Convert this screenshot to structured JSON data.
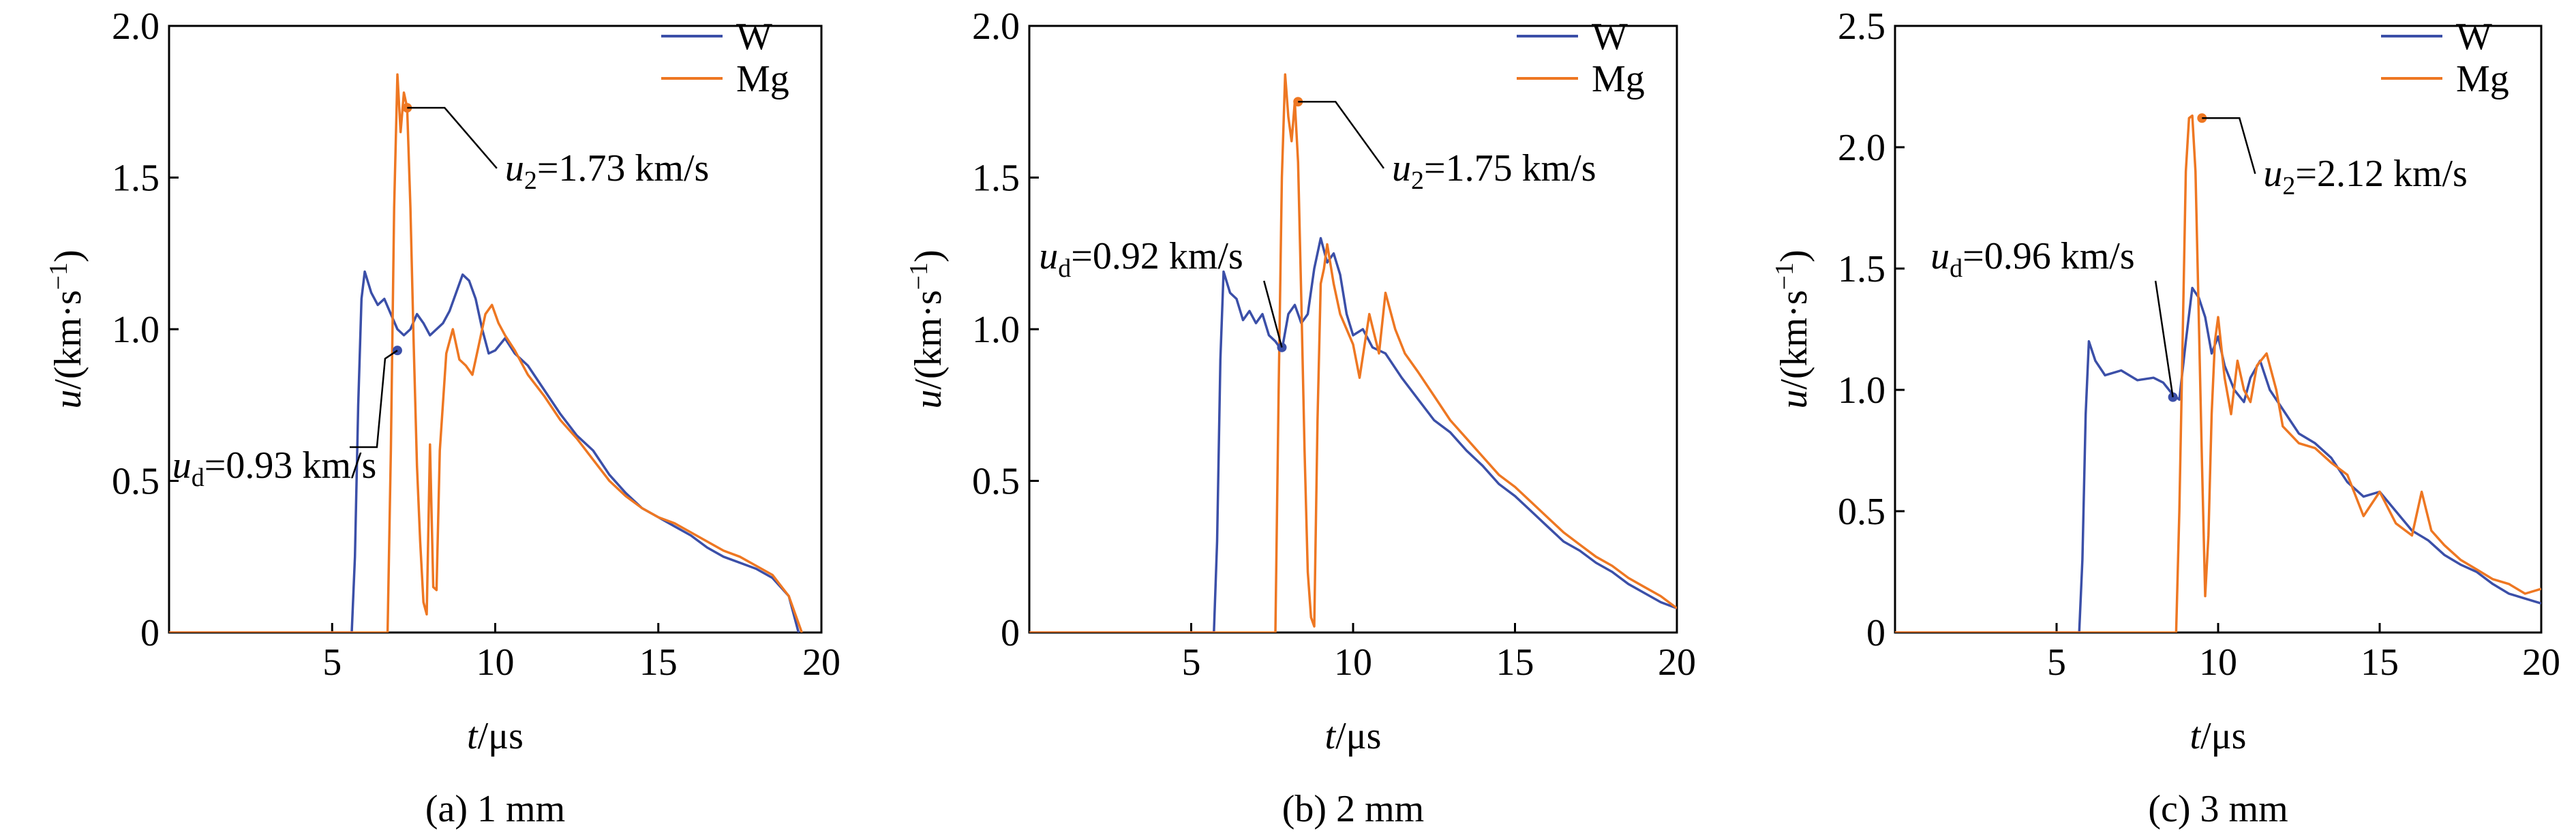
{
  "colors": {
    "W": "#3B4FA8",
    "Mg": "#EE7722",
    "axis": "#000000"
  },
  "chart_data": [
    {
      "type": "line",
      "caption": "(a) 1 mm",
      "xlabel_var": "t",
      "xlabel_unit": "/μs",
      "ylabel_var": "u",
      "ylabel_unit": "/(km·s",
      "ylabel_exp": "−1",
      "ylabel_close": ")",
      "xlim": [
        0,
        20
      ],
      "ylim": [
        0,
        2.0
      ],
      "xticks": [
        5,
        10,
        15,
        20
      ],
      "xtick_labels": [
        "5",
        "10",
        "15",
        "20"
      ],
      "yticks": [
        0,
        0.5,
        1.0,
        1.5,
        2.0
      ],
      "ytick_labels": [
        "0",
        "0.5",
        "1.0",
        "1.5",
        "2.0"
      ],
      "legend_position": "top-right",
      "series": [
        {
          "name": "W",
          "color_key": "W",
          "x": [
            5.6,
            5.7,
            5.8,
            5.9,
            6.0,
            6.2,
            6.4,
            6.6,
            6.8,
            7.0,
            7.2,
            7.4,
            7.6,
            7.8,
            8.0,
            8.2,
            8.4,
            8.6,
            8.8,
            9.0,
            9.2,
            9.4,
            9.6,
            9.8,
            10.0,
            10.3,
            10.6,
            11.0,
            11.5,
            12.0,
            12.5,
            13.0,
            13.5,
            14.0,
            14.5,
            15.0,
            15.5,
            16.0,
            16.5,
            17.0,
            17.5,
            18.0,
            18.5,
            19.0,
            19.3
          ],
          "y": [
            0,
            0.25,
            0.75,
            1.1,
            1.19,
            1.12,
            1.08,
            1.1,
            1.05,
            1.0,
            0.98,
            1.0,
            1.05,
            1.02,
            0.98,
            1.0,
            1.02,
            1.06,
            1.12,
            1.18,
            1.16,
            1.1,
            1.0,
            0.92,
            0.93,
            0.97,
            0.92,
            0.88,
            0.8,
            0.72,
            0.65,
            0.6,
            0.52,
            0.46,
            0.41,
            0.38,
            0.35,
            0.32,
            0.28,
            0.25,
            0.23,
            0.21,
            0.18,
            0.12,
            0
          ]
        },
        {
          "name": "Mg",
          "color_key": "Mg",
          "x": [
            6.7,
            6.8,
            6.9,
            7.0,
            7.1,
            7.2,
            7.3,
            7.4,
            7.5,
            7.6,
            7.7,
            7.8,
            7.9,
            8.0,
            8.1,
            8.2,
            8.3,
            8.5,
            8.7,
            8.9,
            9.1,
            9.3,
            9.5,
            9.7,
            9.9,
            10.1,
            10.3,
            10.6,
            11.0,
            11.5,
            12.0,
            12.5,
            13.0,
            13.5,
            14.0,
            14.5,
            15.0,
            15.5,
            16.0,
            16.5,
            17.0,
            17.5,
            18.0,
            18.5,
            19.0,
            19.4
          ],
          "y": [
            0,
            0.6,
            1.4,
            1.84,
            1.65,
            1.78,
            1.73,
            1.4,
            0.95,
            0.55,
            0.3,
            0.1,
            0.06,
            0.62,
            0.15,
            0.14,
            0.6,
            0.92,
            1.0,
            0.9,
            0.88,
            0.85,
            0.95,
            1.05,
            1.08,
            1.02,
            0.98,
            0.93,
            0.85,
            0.78,
            0.7,
            0.64,
            0.57,
            0.5,
            0.45,
            0.41,
            0.38,
            0.36,
            0.33,
            0.3,
            0.27,
            0.25,
            0.22,
            0.19,
            0.12,
            0
          ]
        }
      ],
      "annotations": [
        {
          "var": "u",
          "sub": "2",
          "text": "=1.73 km/s",
          "x": 7.3,
          "y": 1.73,
          "label_x": 10.3,
          "label_y": 1.49,
          "series": "Mg"
        },
        {
          "var": "u",
          "sub": "d",
          "text": "=0.93 km/s",
          "x": 7.0,
          "y": 0.93,
          "label_x": 0.1,
          "label_y": 0.51,
          "series": "W"
        }
      ]
    },
    {
      "type": "line",
      "caption": "(b) 2 mm",
      "xlabel_var": "t",
      "xlabel_unit": "/μs",
      "ylabel_var": "u",
      "ylabel_unit": "/(km·s",
      "ylabel_exp": "−1",
      "ylabel_close": ")",
      "xlim": [
        0,
        20
      ],
      "ylim": [
        0,
        2.0
      ],
      "xticks": [
        5,
        10,
        15,
        20
      ],
      "xtick_labels": [
        "5",
        "10",
        "15",
        "20"
      ],
      "yticks": [
        0,
        0.5,
        1.0,
        1.5,
        2.0
      ],
      "ytick_labels": [
        "0",
        "0.5",
        "1.0",
        "1.5",
        "2.0"
      ],
      "legend_position": "top-right",
      "series": [
        {
          "name": "W",
          "color_key": "W",
          "x": [
            5.7,
            5.8,
            5.9,
            6.0,
            6.2,
            6.4,
            6.6,
            6.8,
            7.0,
            7.2,
            7.4,
            7.6,
            7.8,
            8.0,
            8.2,
            8.4,
            8.6,
            8.8,
            9.0,
            9.2,
            9.4,
            9.6,
            9.8,
            10.0,
            10.3,
            10.6,
            11.0,
            11.5,
            12.0,
            12.5,
            13.0,
            13.5,
            14.0,
            14.5,
            15.0,
            15.5,
            16.0,
            16.5,
            17.0,
            17.5,
            18.0,
            18.5,
            19.0,
            19.5,
            20.0
          ],
          "y": [
            0,
            0.3,
            0.9,
            1.19,
            1.12,
            1.1,
            1.03,
            1.06,
            1.02,
            1.05,
            0.98,
            0.96,
            0.93,
            1.05,
            1.08,
            1.02,
            1.05,
            1.2,
            1.3,
            1.22,
            1.25,
            1.18,
            1.05,
            0.98,
            1.0,
            0.94,
            0.92,
            0.84,
            0.77,
            0.7,
            0.66,
            0.6,
            0.55,
            0.49,
            0.45,
            0.4,
            0.35,
            0.3,
            0.27,
            0.23,
            0.2,
            0.16,
            0.13,
            0.1,
            0.08
          ]
        },
        {
          "name": "Mg",
          "color_key": "Mg",
          "x": [
            7.6,
            7.7,
            7.8,
            7.9,
            8.0,
            8.1,
            8.2,
            8.3,
            8.4,
            8.5,
            8.6,
            8.7,
            8.8,
            8.9,
            9.0,
            9.1,
            9.2,
            9.4,
            9.6,
            9.8,
            10.0,
            10.2,
            10.5,
            10.8,
            11.0,
            11.3,
            11.6,
            12.0,
            12.5,
            13.0,
            13.5,
            14.0,
            14.5,
            15.0,
            15.5,
            16.0,
            16.5,
            17.0,
            17.5,
            18.0,
            18.5,
            19.0,
            19.5,
            20.0
          ],
          "y": [
            0,
            0.8,
            1.5,
            1.84,
            1.7,
            1.62,
            1.75,
            1.55,
            1.1,
            0.6,
            0.2,
            0.05,
            0.02,
            0.7,
            1.15,
            1.2,
            1.28,
            1.15,
            1.05,
            1.0,
            0.95,
            0.84,
            1.05,
            0.92,
            1.12,
            1.0,
            0.92,
            0.86,
            0.78,
            0.7,
            0.64,
            0.58,
            0.52,
            0.48,
            0.43,
            0.38,
            0.33,
            0.29,
            0.25,
            0.22,
            0.18,
            0.15,
            0.12,
            0.08
          ]
        }
      ],
      "annotations": [
        {
          "var": "u",
          "sub": "2",
          "text": "=1.75 km/s",
          "x": 8.3,
          "y": 1.75,
          "label_x": 11.2,
          "label_y": 1.49,
          "series": "Mg"
        },
        {
          "var": "u",
          "sub": "d",
          "text": "=0.92 km/s",
          "x": 7.8,
          "y": 0.94,
          "label_x": 0.3,
          "label_y": 1.2,
          "series": "W"
        }
      ]
    },
    {
      "type": "line",
      "caption": "(c) 3 mm",
      "xlabel_var": "t",
      "xlabel_unit": "/μs",
      "ylabel_var": "u",
      "ylabel_unit": "/(km·s",
      "ylabel_exp": "−1",
      "ylabel_close": ")",
      "xlim": [
        0,
        20
      ],
      "ylim": [
        0,
        2.5
      ],
      "xticks": [
        5,
        10,
        15,
        20
      ],
      "xtick_labels": [
        "5",
        "10",
        "15",
        "20"
      ],
      "yticks": [
        0,
        0.5,
        1.0,
        1.5,
        2.0,
        2.5
      ],
      "ytick_labels": [
        "0",
        "0.5",
        "1.0",
        "1.5",
        "2.0",
        "2.5"
      ],
      "legend_position": "top-right",
      "series": [
        {
          "name": "W",
          "color_key": "W",
          "x": [
            5.7,
            5.8,
            5.9,
            6.0,
            6.2,
            6.5,
            7.0,
            7.5,
            8.0,
            8.3,
            8.6,
            8.8,
            9.0,
            9.2,
            9.4,
            9.6,
            9.8,
            10.0,
            10.2,
            10.5,
            10.8,
            11.0,
            11.3,
            11.6,
            12.0,
            12.5,
            13.0,
            13.5,
            14.0,
            14.5,
            15.0,
            15.5,
            16.0,
            16.5,
            17.0,
            17.5,
            18.0,
            18.5,
            19.0,
            19.5,
            20.0
          ],
          "y": [
            0,
            0.3,
            0.9,
            1.2,
            1.12,
            1.06,
            1.08,
            1.04,
            1.05,
            1.03,
            0.98,
            0.96,
            1.2,
            1.42,
            1.38,
            1.3,
            1.15,
            1.22,
            1.1,
            1.0,
            0.95,
            1.05,
            1.12,
            1.0,
            0.92,
            0.82,
            0.78,
            0.72,
            0.62,
            0.56,
            0.58,
            0.5,
            0.42,
            0.38,
            0.32,
            0.28,
            0.25,
            0.2,
            0.16,
            0.14,
            0.12
          ]
        },
        {
          "name": "Mg",
          "color_key": "Mg",
          "x": [
            8.7,
            8.8,
            8.9,
            9.0,
            9.1,
            9.2,
            9.3,
            9.4,
            9.5,
            9.6,
            9.7,
            9.8,
            9.9,
            10.0,
            10.2,
            10.4,
            10.6,
            10.8,
            11.0,
            11.2,
            11.5,
            11.8,
            12.0,
            12.5,
            13.0,
            13.5,
            14.0,
            14.5,
            15.0,
            15.5,
            16.0,
            16.3,
            16.6,
            17.0,
            17.5,
            18.0,
            18.5,
            19.0,
            19.5,
            20.0
          ],
          "y": [
            0,
            0.5,
            1.2,
            1.9,
            2.12,
            2.13,
            1.9,
            1.3,
            0.7,
            0.15,
            0.4,
            0.9,
            1.2,
            1.3,
            1.05,
            0.9,
            1.12,
            1.0,
            0.95,
            1.1,
            1.15,
            1.0,
            0.85,
            0.78,
            0.76,
            0.7,
            0.65,
            0.48,
            0.58,
            0.45,
            0.4,
            0.58,
            0.42,
            0.36,
            0.3,
            0.26,
            0.22,
            0.2,
            0.16,
            0.18
          ]
        }
      ],
      "annotations": [
        {
          "var": "u",
          "sub": "2",
          "text": "=2.12 km/s",
          "x": 9.5,
          "y": 2.12,
          "label_x": 11.4,
          "label_y": 1.84,
          "series": "Mg"
        },
        {
          "var": "u",
          "sub": "d",
          "text": "=0.96 km/s",
          "x": 8.6,
          "y": 0.97,
          "label_x": 1.1,
          "label_y": 1.5,
          "series": "W"
        }
      ]
    }
  ]
}
